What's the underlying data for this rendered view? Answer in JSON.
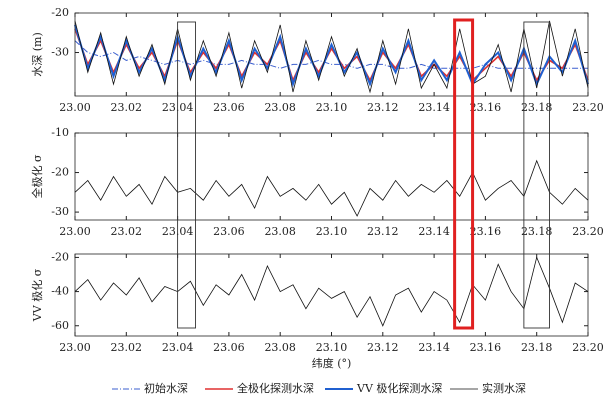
{
  "chart_data": [
    {
      "type": "line",
      "ylabel": "水深 (m)",
      "x": [
        23.0,
        23.005,
        23.01,
        23.015,
        23.02,
        23.025,
        23.03,
        23.035,
        23.04,
        23.045,
        23.05,
        23.055,
        23.06,
        23.065,
        23.07,
        23.075,
        23.08,
        23.085,
        23.09,
        23.095,
        23.1,
        23.105,
        23.11,
        23.115,
        23.12,
        23.125,
        23.13,
        23.135,
        23.14,
        23.145,
        23.15,
        23.155,
        23.16,
        23.165,
        23.17,
        23.175,
        23.18,
        23.185,
        23.19,
        23.195,
        23.2
      ],
      "xlim": [
        23.0,
        23.2
      ],
      "xticks": [
        {
          "value": 23.0,
          "label": "23.00"
        },
        23.02,
        23.04,
        23.06,
        23.08,
        {
          "value": 23.1,
          "label": "23.10"
        },
        23.12,
        23.14,
        23.16,
        23.18,
        {
          "value": 23.2,
          "label": "23.20"
        }
      ],
      "ylim": [
        -41,
        -20
      ],
      "yticks": [
        -20,
        -30
      ],
      "series": [
        {
          "name": "初始水深",
          "color": "#3b5fcf",
          "style": "dashdot",
          "values": [
            -27,
            -30,
            -31,
            -30,
            -32,
            -31,
            -32,
            -33,
            -32,
            -33,
            -32,
            -33,
            -33,
            -32,
            -33,
            -33,
            -34,
            -33,
            -33,
            -32,
            -33,
            -33,
            -34,
            -33,
            -33,
            -34,
            -34,
            -33,
            -34,
            -34,
            -34,
            -34,
            -33,
            -34,
            -34,
            -34,
            -34,
            -34,
            -34,
            -34,
            -34
          ]
        },
        {
          "name": "全极化探测水深",
          "color": "#e03030",
          "style": "solid",
          "values": [
            -24,
            -33,
            -27,
            -35,
            -28,
            -34,
            -30,
            -36,
            -27,
            -35,
            -30,
            -34,
            -28,
            -36,
            -30,
            -33,
            -27,
            -37,
            -30,
            -35,
            -29,
            -34,
            -31,
            -37,
            -30,
            -34,
            -28,
            -36,
            -33,
            -36,
            -31,
            -37,
            -34,
            -31,
            -36,
            -30,
            -37,
            -32,
            -34,
            -28,
            -37
          ]
        },
        {
          "name": "VV 极化探测水深",
          "color": "#2060d0",
          "style": "thick",
          "values": [
            -23,
            -34,
            -26,
            -36,
            -27,
            -35,
            -29,
            -37,
            -26,
            -36,
            -29,
            -35,
            -27,
            -37,
            -29,
            -34,
            -26,
            -38,
            -29,
            -36,
            -28,
            -35,
            -30,
            -38,
            -29,
            -35,
            -27,
            -37,
            -32,
            -37,
            -30,
            -38,
            -33,
            -30,
            -37,
            -29,
            -38,
            -31,
            -35,
            -27,
            -38
          ]
        },
        {
          "name": "实测水深",
          "color": "#111111",
          "style": "thin",
          "values": [
            -22,
            -35,
            -25,
            -38,
            -26,
            -36,
            -28,
            -38,
            -24,
            -37,
            -27,
            -36,
            -25,
            -39,
            -27,
            -35,
            -23,
            -40,
            -27,
            -37,
            -26,
            -36,
            -29,
            -40,
            -27,
            -38,
            -24,
            -39,
            -33,
            -39,
            -24,
            -38,
            -36,
            -28,
            -40,
            -24,
            -39,
            -22,
            -36,
            -24,
            -39
          ]
        }
      ]
    },
    {
      "type": "line",
      "ylabel": "全极化 σ",
      "x": [
        23.0,
        23.005,
        23.01,
        23.015,
        23.02,
        23.025,
        23.03,
        23.035,
        23.04,
        23.045,
        23.05,
        23.055,
        23.06,
        23.065,
        23.07,
        23.075,
        23.08,
        23.085,
        23.09,
        23.095,
        23.1,
        23.105,
        23.11,
        23.115,
        23.12,
        23.125,
        23.13,
        23.135,
        23.14,
        23.145,
        23.15,
        23.155,
        23.16,
        23.165,
        23.17,
        23.175,
        23.18,
        23.185,
        23.19,
        23.195,
        23.2
      ],
      "xlim": [
        23.0,
        23.2
      ],
      "xticks": [
        {
          "value": 23.0,
          "label": "23.00"
        },
        23.02,
        23.04,
        23.06,
        23.08,
        {
          "value": 23.1,
          "label": "23.10"
        },
        23.12,
        23.14,
        23.16,
        23.18,
        {
          "value": 23.2,
          "label": "23.20"
        }
      ],
      "ylim": [
        -32,
        -10
      ],
      "yticks": [
        -10,
        -20,
        -30
      ],
      "series": [
        {
          "color": "#111111",
          "style": "thin",
          "values": [
            -25,
            -22,
            -27,
            -21,
            -26,
            -23,
            -28,
            -21,
            -25,
            -24,
            -27,
            -22,
            -26,
            -23,
            -29,
            -21,
            -26,
            -24,
            -27,
            -23,
            -28,
            -25,
            -31,
            -24,
            -27,
            -22,
            -26,
            -23,
            -25,
            -22,
            -26,
            -20,
            -27,
            -24,
            -22,
            -26,
            -17,
            -25,
            -28,
            -24,
            -27
          ]
        }
      ]
    },
    {
      "type": "line",
      "ylabel": "VV 极化 σ",
      "xlabel": "纬度 (°)",
      "x": [
        23.0,
        23.005,
        23.01,
        23.015,
        23.02,
        23.025,
        23.03,
        23.035,
        23.04,
        23.045,
        23.05,
        23.055,
        23.06,
        23.065,
        23.07,
        23.075,
        23.08,
        23.085,
        23.09,
        23.095,
        23.1,
        23.105,
        23.11,
        23.115,
        23.12,
        23.125,
        23.13,
        23.135,
        23.14,
        23.145,
        23.15,
        23.155,
        23.16,
        23.165,
        23.17,
        23.175,
        23.18,
        23.185,
        23.19,
        23.195,
        23.2
      ],
      "xlim": [
        23.0,
        23.2
      ],
      "xticks": [
        {
          "value": 23.0,
          "label": "23.00"
        },
        23.02,
        23.04,
        23.06,
        23.08,
        {
          "value": 23.1,
          "label": "23.10"
        },
        23.12,
        23.14,
        23.16,
        23.18,
        {
          "value": 23.2,
          "label": "23.20"
        }
      ],
      "ylim": [
        -66,
        -18
      ],
      "yticks": [
        -20,
        -40,
        -60
      ],
      "series": [
        {
          "color": "#111111",
          "style": "thin",
          "values": [
            -40,
            -33,
            -45,
            -35,
            -42,
            -32,
            -46,
            -37,
            -40,
            -34,
            -48,
            -36,
            -42,
            -30,
            -45,
            -25,
            -40,
            -36,
            -50,
            -38,
            -44,
            -40,
            -55,
            -43,
            -60,
            -42,
            -38,
            -52,
            -40,
            -45,
            -58,
            -36,
            -45,
            -24,
            -40,
            -50,
            -20,
            -38,
            -58,
            -35,
            -40
          ]
        }
      ]
    }
  ],
  "highlight_regions": [
    {
      "x": [
        23.04,
        23.047
      ],
      "color": "#333333"
    },
    {
      "x": [
        23.148,
        23.155
      ],
      "color": "#e02020"
    },
    {
      "x": [
        23.175,
        23.185
      ],
      "color": "#333333"
    }
  ]
}
